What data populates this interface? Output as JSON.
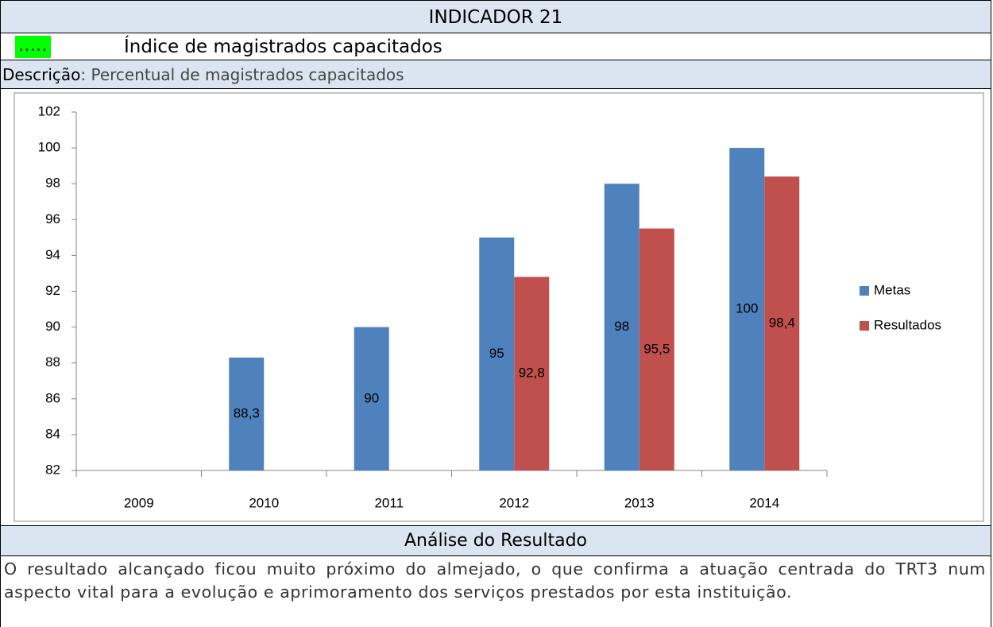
{
  "header": {
    "title": "INDICADOR 21",
    "marker": ".....",
    "subtitle": "Índice de magistrados capacitados"
  },
  "description": {
    "label": "Descrição",
    "text": ": Percentual de magistrados capacitados"
  },
  "chart_data": {
    "type": "bar",
    "categories": [
      "2009",
      "2010",
      "2011",
      "2012",
      "2013",
      "2014"
    ],
    "series": [
      {
        "name": "Metas",
        "color": "#4f81bd",
        "values": [
          null,
          88.3,
          90,
          95,
          98,
          100
        ],
        "value_labels": [
          null,
          "88,3",
          "90",
          "95",
          "98",
          "100"
        ]
      },
      {
        "name": "Resultados",
        "color": "#c0504d",
        "values": [
          null,
          null,
          null,
          92.8,
          95.5,
          98.4
        ],
        "value_labels": [
          null,
          null,
          null,
          "92,8",
          "95,5",
          "98,4"
        ]
      }
    ],
    "ylim": [
      82,
      102
    ],
    "yticks": [
      82,
      84,
      86,
      88,
      90,
      92,
      94,
      96,
      98,
      100,
      102
    ],
    "legend": "right"
  },
  "analysis": {
    "title": "Análise do Resultado",
    "text": "O resultado alcançado ficou muito próximo do almejado, o que confirma a atuação centrada do TRT3 num aspecto vital para a evolução e aprimoramento dos serviços prestados por esta instituição."
  }
}
